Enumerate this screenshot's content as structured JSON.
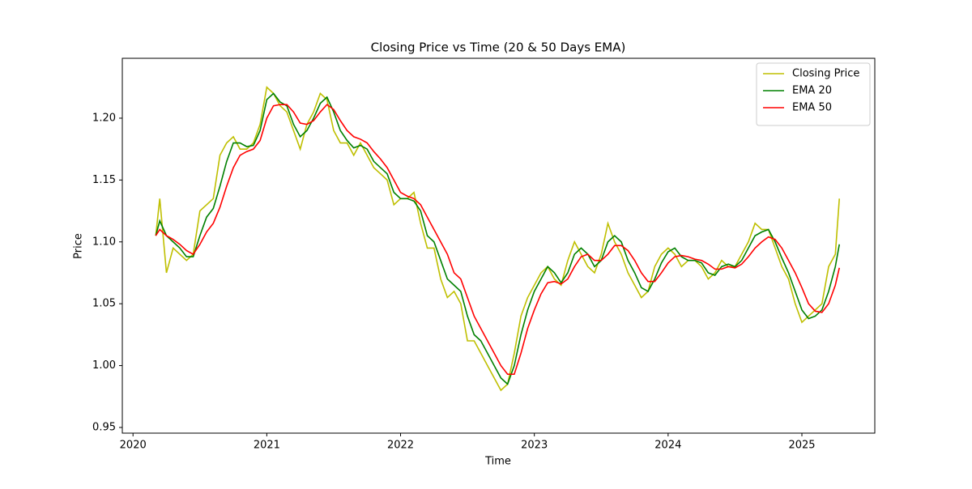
{
  "chart_data": {
    "type": "line",
    "title": "Closing Price vs Time (20 & 50 Days EMA)",
    "x_label": "Time",
    "y_label": "Price",
    "legend": "upper right",
    "grid": false,
    "xlim": [
      2019.92,
      2025.545
    ],
    "xticks": [
      2020,
      2021,
      2022,
      2023,
      2024,
      2025
    ],
    "ylim": [
      0.9454,
      1.2484
    ],
    "yticks": [
      0.95,
      {
        "value": 1,
        "label": "1.00"
      },
      1.05,
      {
        "value": 1.1,
        "label": "1.10"
      },
      1.15,
      {
        "value": 1.2,
        "label": "1.20"
      }
    ],
    "x": [
      2020.17,
      2020.2,
      2020.25,
      2020.3,
      2020.35,
      2020.4,
      2020.45,
      2020.5,
      2020.55,
      2020.6,
      2020.65,
      2020.7,
      2020.75,
      2020.8,
      2020.85,
      2020.9,
      2020.95,
      2021.0,
      2021.05,
      2021.1,
      2021.15,
      2021.2,
      2021.25,
      2021.3,
      2021.35,
      2021.4,
      2021.45,
      2021.5,
      2021.55,
      2021.6,
      2021.65,
      2021.7,
      2021.75,
      2021.8,
      2021.85,
      2021.9,
      2021.95,
      2022.0,
      2022.05,
      2022.1,
      2022.15,
      2022.2,
      2022.25,
      2022.3,
      2022.35,
      2022.4,
      2022.45,
      2022.5,
      2022.55,
      2022.6,
      2022.65,
      2022.7,
      2022.75,
      2022.8,
      2022.85,
      2022.9,
      2022.95,
      2023.0,
      2023.05,
      2023.1,
      2023.15,
      2023.2,
      2023.25,
      2023.3,
      2023.35,
      2023.4,
      2023.45,
      2023.5,
      2023.55,
      2023.6,
      2023.65,
      2023.7,
      2023.75,
      2023.8,
      2023.85,
      2023.9,
      2023.95,
      2024.0,
      2024.05,
      2024.1,
      2024.15,
      2024.2,
      2024.25,
      2024.3,
      2024.35,
      2024.4,
      2024.45,
      2024.5,
      2024.55,
      2024.6,
      2024.65,
      2024.7,
      2024.75,
      2024.8,
      2024.85,
      2024.9,
      2024.95,
      2025.0,
      2025.05,
      2025.1,
      2025.15,
      2025.2,
      2025.25,
      2025.28
    ],
    "series": [
      {
        "name": "Closing Price",
        "color": "#bfbf00",
        "values": [
          1.105,
          1.135,
          1.075,
          1.095,
          1.09,
          1.085,
          1.09,
          1.125,
          1.13,
          1.135,
          1.17,
          1.18,
          1.185,
          1.175,
          1.175,
          1.18,
          1.195,
          1.225,
          1.22,
          1.21,
          1.205,
          1.19,
          1.175,
          1.195,
          1.205,
          1.22,
          1.215,
          1.19,
          1.18,
          1.18,
          1.17,
          1.18,
          1.17,
          1.16,
          1.155,
          1.15,
          1.13,
          1.135,
          1.135,
          1.14,
          1.115,
          1.095,
          1.095,
          1.07,
          1.055,
          1.06,
          1.05,
          1.02,
          1.02,
          1.01,
          1.0,
          0.99,
          0.98,
          0.985,
          1.01,
          1.04,
          1.055,
          1.065,
          1.075,
          1.08,
          1.07,
          1.065,
          1.085,
          1.1,
          1.09,
          1.08,
          1.075,
          1.09,
          1.115,
          1.1,
          1.09,
          1.075,
          1.065,
          1.055,
          1.06,
          1.08,
          1.09,
          1.095,
          1.09,
          1.08,
          1.085,
          1.085,
          1.08,
          1.07,
          1.075,
          1.085,
          1.08,
          1.08,
          1.09,
          1.1,
          1.115,
          1.11,
          1.11,
          1.095,
          1.08,
          1.07,
          1.05,
          1.035,
          1.04,
          1.045,
          1.05,
          1.08,
          1.09,
          1.135
        ]
      },
      {
        "name": "EMA 20",
        "color": "#008000",
        "values": [
          1.105,
          1.117,
          1.105,
          1.1,
          1.095,
          1.088,
          1.088,
          1.105,
          1.12,
          1.127,
          1.145,
          1.165,
          1.18,
          1.18,
          1.177,
          1.178,
          1.19,
          1.215,
          1.22,
          1.213,
          1.21,
          1.195,
          1.185,
          1.19,
          1.2,
          1.212,
          1.217,
          1.205,
          1.19,
          1.182,
          1.176,
          1.178,
          1.175,
          1.165,
          1.16,
          1.155,
          1.14,
          1.135,
          1.135,
          1.133,
          1.125,
          1.105,
          1.1,
          1.085,
          1.07,
          1.065,
          1.06,
          1.04,
          1.025,
          1.02,
          1.01,
          1.0,
          0.99,
          0.985,
          1.0,
          1.025,
          1.045,
          1.06,
          1.07,
          1.08,
          1.075,
          1.067,
          1.075,
          1.09,
          1.095,
          1.09,
          1.08,
          1.085,
          1.1,
          1.105,
          1.1,
          1.085,
          1.075,
          1.063,
          1.06,
          1.07,
          1.083,
          1.092,
          1.095,
          1.088,
          1.085,
          1.085,
          1.083,
          1.075,
          1.073,
          1.08,
          1.082,
          1.08,
          1.085,
          1.095,
          1.105,
          1.108,
          1.11,
          1.1,
          1.087,
          1.075,
          1.06,
          1.045,
          1.038,
          1.04,
          1.045,
          1.06,
          1.08,
          1.098
        ]
      },
      {
        "name": "EMA 50",
        "color": "#ff0000",
        "values": [
          1.105,
          1.11,
          1.105,
          1.102,
          1.098,
          1.093,
          1.09,
          1.098,
          1.108,
          1.115,
          1.128,
          1.145,
          1.16,
          1.17,
          1.173,
          1.175,
          1.182,
          1.2,
          1.21,
          1.211,
          1.211,
          1.205,
          1.196,
          1.195,
          1.198,
          1.205,
          1.211,
          1.207,
          1.198,
          1.19,
          1.185,
          1.183,
          1.18,
          1.173,
          1.167,
          1.16,
          1.15,
          1.14,
          1.137,
          1.135,
          1.13,
          1.12,
          1.11,
          1.1,
          1.09,
          1.075,
          1.07,
          1.055,
          1.04,
          1.03,
          1.02,
          1.01,
          1.0,
          0.993,
          0.993,
          1.01,
          1.03,
          1.045,
          1.058,
          1.067,
          1.068,
          1.066,
          1.07,
          1.08,
          1.088,
          1.09,
          1.085,
          1.085,
          1.09,
          1.097,
          1.097,
          1.093,
          1.085,
          1.075,
          1.068,
          1.068,
          1.075,
          1.083,
          1.088,
          1.089,
          1.088,
          1.086,
          1.085,
          1.082,
          1.078,
          1.078,
          1.08,
          1.079,
          1.082,
          1.088,
          1.095,
          1.1,
          1.104,
          1.102,
          1.095,
          1.085,
          1.075,
          1.063,
          1.05,
          1.044,
          1.043,
          1.05,
          1.065,
          1.079
        ]
      }
    ]
  }
}
